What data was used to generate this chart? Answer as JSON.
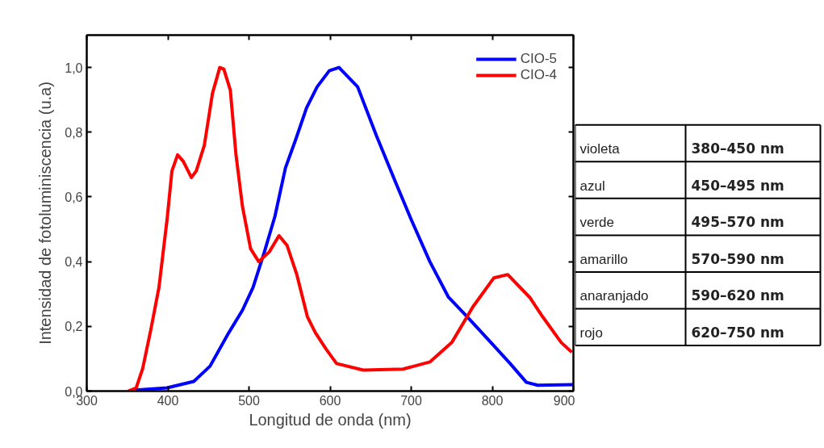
{
  "chart_data": [
    {
      "type": "line",
      "xlabel": "Longitud de onda (nm)",
      "ylabel": "Intensidad de fotoluminiscencia (u.a)",
      "xlim": [
        300,
        900
      ],
      "ylim": [
        0,
        1.1
      ],
      "xticks": [
        300,
        400,
        500,
        600,
        700,
        800,
        900
      ],
      "yticks": [
        {
          "value": 0,
          "label": "0,0"
        },
        {
          "value": 0.2,
          "label": "0,2"
        },
        {
          "value": 0.4,
          "label": "0,4"
        },
        {
          "value": 0.6,
          "label": "0,6"
        },
        {
          "value": 0.8,
          "label": "0,8"
        },
        {
          "value": 1.0,
          "label": "1,0"
        }
      ],
      "grid": false,
      "legend": "top right",
      "line_style": "solid",
      "marker": "none",
      "series": [
        {
          "name": "CIO-5",
          "color": "#0000ff",
          "x": [
            360,
            399,
            432,
            452,
            475,
            492,
            505,
            519,
            532,
            545,
            558,
            571,
            584,
            599,
            611,
            634,
            657,
            680,
            700,
            723,
            746,
            769,
            802,
            822,
            842,
            856,
            900
          ],
          "values": [
            0.003,
            0.01,
            0.03,
            0.077,
            0.18,
            0.25,
            0.32,
            0.43,
            0.54,
            0.69,
            0.78,
            0.875,
            0.94,
            0.99,
            1.0,
            0.94,
            0.79,
            0.65,
            0.53,
            0.4,
            0.29,
            0.23,
            0.14,
            0.085,
            0.027,
            0.018,
            0.02
          ]
        },
        {
          "name": "CIO-4",
          "color": "#ff0000",
          "x": [
            351,
            361,
            369,
            379,
            389,
            399,
            405,
            412,
            419,
            429,
            435,
            445,
            455,
            464,
            469,
            477,
            484,
            492,
            502,
            512,
            525,
            537,
            547,
            559,
            572,
            582,
            595,
            608,
            641,
            690,
            723,
            750,
            776,
            802,
            819,
            846,
            862,
            885,
            898
          ],
          "values": [
            0,
            0.01,
            0.07,
            0.19,
            0.32,
            0.53,
            0.68,
            0.73,
            0.71,
            0.66,
            0.68,
            0.76,
            0.92,
            1.0,
            0.995,
            0.93,
            0.73,
            0.57,
            0.44,
            0.4,
            0.43,
            0.48,
            0.45,
            0.36,
            0.23,
            0.18,
            0.13,
            0.085,
            0.065,
            0.068,
            0.09,
            0.15,
            0.26,
            0.35,
            0.36,
            0.29,
            0.23,
            0.15,
            0.12
          ]
        }
      ]
    },
    {
      "type": "other",
      "annotations": [
        "violeta",
        "380–450 nm",
        "azul",
        "450–495 nm",
        "verde",
        "495–570 nm",
        "amarillo",
        "570–590 nm",
        "anaranjado",
        "590–620 nm",
        "rojo",
        "620–750 nm"
      ]
    }
  ]
}
